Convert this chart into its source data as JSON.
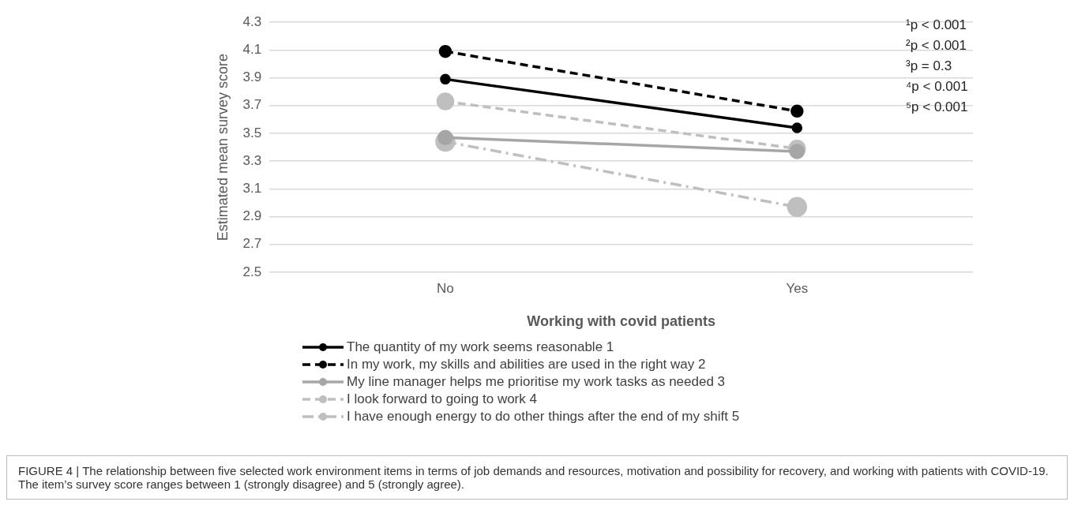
{
  "chart_data": {
    "type": "line",
    "xlabel": "Working with covid patients",
    "ylabel": "Estimated mean survey score",
    "categories": [
      "No",
      "Yes"
    ],
    "series": [
      {
        "name": "The quantity of my work seems reasonable 1",
        "color": "#000000",
        "values": [
          3.89,
          3.54
        ],
        "line_style": "solid"
      },
      {
        "name": "In my work, my skills and abilities are used in the right way 2",
        "color": "#000000",
        "values": [
          4.09,
          3.66
        ],
        "line_style": "dashed"
      },
      {
        "name": "My line manager helps me prioritise my work tasks as needed 3",
        "color": "#a6a6a6",
        "values": [
          3.47,
          3.37
        ],
        "line_style": "solid"
      },
      {
        "name": "I look forward to going to work 4",
        "color": "#bfbfbf",
        "values": [
          3.73,
          3.39
        ],
        "line_style": "dashed"
      },
      {
        "name": "I have enough energy to do other things after the end of my shift 5",
        "color": "#bfbfbf",
        "values": [
          3.44,
          2.97
        ],
        "line_style": "dashdot"
      }
    ],
    "ylim": [
      2.5,
      4.3
    ],
    "yticks": [
      2.5,
      2.7,
      2.9,
      3.1,
      3.3,
      3.5,
      3.7,
      3.9,
      4.1,
      4.3
    ],
    "grid": "y",
    "legend": "bottom",
    "marker": "circle",
    "annotations": [
      "¹p < 0.001",
      "²p < 0.001",
      "³p = 0.3",
      "⁴p < 0.001",
      "⁵p < 0.001",
      "FIGURE 4 | The relationship between five selected work environment items in terms of job demands and resources, motivation and possibility for recovery, and working with patients with COVID-19. The item’s survey score ranges between 1 (strongly disagree) and 5 (strongly agree)."
    ]
  }
}
